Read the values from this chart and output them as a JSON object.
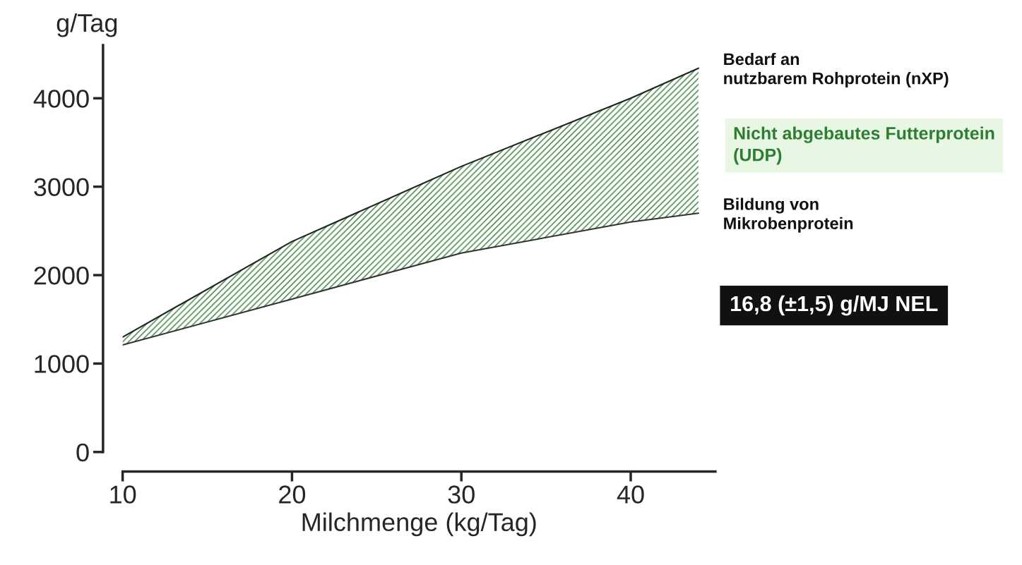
{
  "chart_data": {
    "type": "line",
    "xlabel": "Milchmenge (kg/Tag)",
    "ylabel": "g/Tag",
    "x": [
      10,
      20,
      30,
      40,
      44
    ],
    "series": [
      {
        "name": "Bedarf an nutzbarem Rohprotein (nXP)",
        "color": "#222222",
        "values": [
          1300,
          2380,
          3230,
          4000,
          4340
        ],
        "lower": [
          1210,
          1730,
          2250,
          2600,
          2700
        ],
        "upper": [
          1300,
          2380,
          3230,
          4000,
          4340
        ]
      },
      {
        "name": "Bildung von Mikrobenprotein",
        "color": "#333333",
        "values": [
          1210,
          1730,
          2250,
          2600,
          2700
        ]
      }
    ],
    "xlim": [
      10,
      45
    ],
    "xticks": [
      10,
      20,
      30,
      40
    ],
    "ylim": [
      0,
      4600
    ],
    "yticks": [
      0,
      1000,
      2000,
      3000,
      4000
    ],
    "annotations": [
      "Nicht abgebautes Futterprotein (UDP)",
      "16,8 (±1,5) g/MJ NEL"
    ],
    "grid": false,
    "legend": false
  }
}
